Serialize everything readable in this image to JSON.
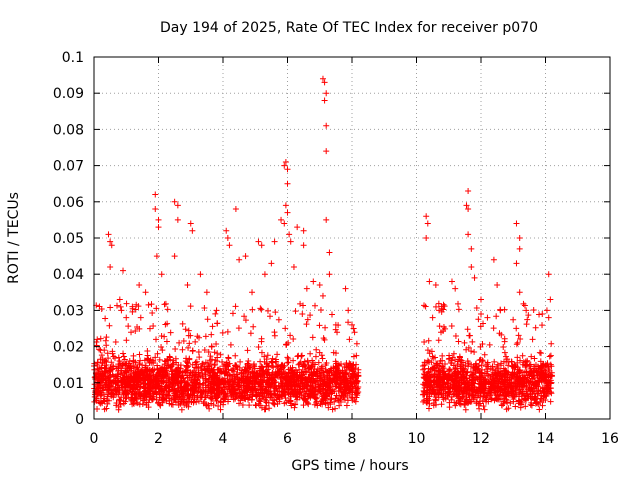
{
  "chart_data": {
    "type": "scatter",
    "title": "Day 194 of 2025, Rate Of TEC Index for receiver p070",
    "xlabel": "GPS time / hours",
    "ylabel": "ROTI / TECUs",
    "xlim": [
      0,
      16
    ],
    "ylim": [
      0,
      0.1
    ],
    "x_ticks": [
      "0",
      "2",
      "4",
      "6",
      "8",
      "10",
      "12",
      "14",
      "16"
    ],
    "y_ticks": [
      "0",
      "0.01",
      "0.02",
      "0.03",
      "0.04",
      "0.05",
      "0.06",
      "0.07",
      "0.08",
      "0.09",
      "0.1"
    ],
    "grid": true,
    "marker": "+",
    "color": "#ff0000",
    "segments": [
      {
        "start": 0.0,
        "end": 8.2,
        "baseline": 0.01,
        "spread": 0.004
      },
      {
        "start": 10.2,
        "end": 14.2,
        "baseline": 0.01,
        "spread": 0.004
      }
    ],
    "series": [
      {
        "name": "p070",
        "points": [
          [
            0.1,
            0.022
          ],
          [
            0.2,
            0.019
          ],
          [
            0.45,
            0.051
          ],
          [
            0.5,
            0.049
          ],
          [
            0.5,
            0.042
          ],
          [
            0.55,
            0.048
          ],
          [
            0.9,
            0.041
          ],
          [
            0.8,
            0.033
          ],
          [
            0.85,
            0.03
          ],
          [
            1.0,
            0.028
          ],
          [
            1.4,
            0.037
          ],
          [
            1.6,
            0.035
          ],
          [
            1.9,
            0.062
          ],
          [
            1.9,
            0.058
          ],
          [
            2.0,
            0.055
          ],
          [
            2.0,
            0.053
          ],
          [
            1.95,
            0.045
          ],
          [
            2.1,
            0.04
          ],
          [
            2.5,
            0.06
          ],
          [
            2.6,
            0.059
          ],
          [
            2.6,
            0.055
          ],
          [
            2.5,
            0.045
          ],
          [
            3.0,
            0.054
          ],
          [
            3.05,
            0.052
          ],
          [
            2.9,
            0.037
          ],
          [
            3.3,
            0.04
          ],
          [
            3.5,
            0.035
          ],
          [
            3.8,
            0.03
          ],
          [
            4.1,
            0.052
          ],
          [
            4.15,
            0.05
          ],
          [
            4.2,
            0.048
          ],
          [
            4.4,
            0.058
          ],
          [
            4.5,
            0.044
          ],
          [
            4.7,
            0.045
          ],
          [
            4.9,
            0.035
          ],
          [
            5.1,
            0.049
          ],
          [
            5.2,
            0.048
          ],
          [
            5.3,
            0.04
          ],
          [
            5.5,
            0.043
          ],
          [
            5.6,
            0.049
          ],
          [
            5.8,
            0.055
          ],
          [
            5.9,
            0.054
          ],
          [
            5.9,
            0.07
          ],
          [
            5.95,
            0.071
          ],
          [
            6.0,
            0.069
          ],
          [
            6.0,
            0.065
          ],
          [
            5.95,
            0.059
          ],
          [
            6.0,
            0.057
          ],
          [
            6.05,
            0.051
          ],
          [
            6.1,
            0.049
          ],
          [
            6.2,
            0.042
          ],
          [
            6.3,
            0.053
          ],
          [
            6.5,
            0.052
          ],
          [
            6.5,
            0.048
          ],
          [
            6.6,
            0.036
          ],
          [
            6.8,
            0.038
          ],
          [
            7.0,
            0.037
          ],
          [
            7.1,
            0.094
          ],
          [
            7.15,
            0.093
          ],
          [
            7.2,
            0.09
          ],
          [
            7.15,
            0.088
          ],
          [
            7.2,
            0.081
          ],
          [
            7.2,
            0.074
          ],
          [
            7.2,
            0.055
          ],
          [
            7.3,
            0.046
          ],
          [
            7.3,
            0.04
          ],
          [
            7.1,
            0.034
          ],
          [
            7.5,
            0.026
          ],
          [
            7.8,
            0.036
          ],
          [
            8.0,
            0.026
          ],
          [
            8.05,
            0.025
          ],
          [
            10.3,
            0.056
          ],
          [
            10.35,
            0.054
          ],
          [
            10.3,
            0.05
          ],
          [
            10.4,
            0.038
          ],
          [
            10.6,
            0.037
          ],
          [
            10.5,
            0.028
          ],
          [
            10.7,
            0.03
          ],
          [
            11.1,
            0.038
          ],
          [
            11.2,
            0.036
          ],
          [
            11.6,
            0.063
          ],
          [
            11.55,
            0.059
          ],
          [
            11.6,
            0.058
          ],
          [
            11.6,
            0.051
          ],
          [
            11.7,
            0.047
          ],
          [
            11.7,
            0.042
          ],
          [
            11.8,
            0.039
          ],
          [
            12.0,
            0.033
          ],
          [
            12.0,
            0.029
          ],
          [
            12.2,
            0.028
          ],
          [
            12.4,
            0.044
          ],
          [
            12.5,
            0.037
          ],
          [
            12.6,
            0.03
          ],
          [
            13.1,
            0.054
          ],
          [
            13.2,
            0.05
          ],
          [
            13.2,
            0.047
          ],
          [
            13.1,
            0.043
          ],
          [
            13.2,
            0.035
          ],
          [
            13.4,
            0.03
          ],
          [
            13.6,
            0.022
          ],
          [
            13.9,
            0.029
          ],
          [
            14.1,
            0.04
          ],
          [
            14.15,
            0.033
          ],
          [
            14.1,
            0.028
          ]
        ]
      }
    ]
  }
}
